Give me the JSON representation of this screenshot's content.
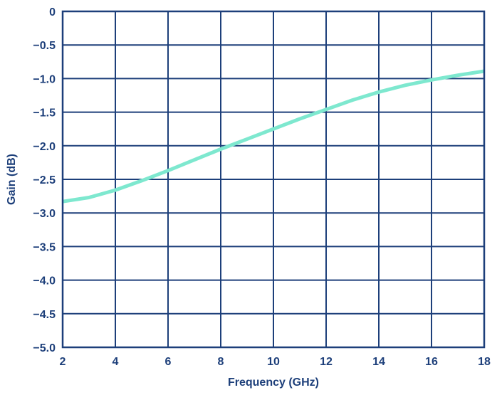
{
  "chart_data": {
    "type": "line",
    "title": "",
    "xlabel": "Frequency (GHz)",
    "ylabel": "Gain (dB)",
    "xlim": [
      2,
      18
    ],
    "ylim": [
      -5.0,
      0
    ],
    "grid": true,
    "x_ticks": [
      2,
      4,
      6,
      8,
      10,
      12,
      14,
      16,
      18
    ],
    "x_tick_labels": [
      "2",
      "4",
      "6",
      "8",
      "10",
      "12",
      "14",
      "16",
      "18"
    ],
    "y_ticks": [
      0,
      -0.5,
      -1.0,
      -1.5,
      -2.0,
      -2.5,
      -3.0,
      -3.5,
      -4.0,
      -4.5,
      -5.0
    ],
    "y_tick_labels": [
      "0",
      "−0.5",
      "−1.0",
      "−1.5",
      "−2.0",
      "−2.5",
      "−3.0",
      "−3.5",
      "−4.0",
      "−4.5",
      "−5.0"
    ],
    "series": [
      {
        "color": "#7ee8cf",
        "x": [
          2.0,
          3.0,
          4.0,
          5.0,
          6.0,
          7.0,
          8.0,
          9.0,
          10.0,
          11.0,
          12.0,
          13.0,
          14.0,
          15.0,
          16.0,
          17.0,
          18.0
        ],
        "y": [
          -2.83,
          -2.77,
          -2.66,
          -2.52,
          -2.37,
          -2.21,
          -2.05,
          -1.9,
          -1.75,
          -1.6,
          -1.46,
          -1.32,
          -1.2,
          -1.1,
          -1.02,
          -0.95,
          -0.89
        ]
      }
    ],
    "colors": {
      "axis": "#1d3f7a",
      "grid": "#1d3f7a",
      "text": "#1d3f7a"
    }
  }
}
